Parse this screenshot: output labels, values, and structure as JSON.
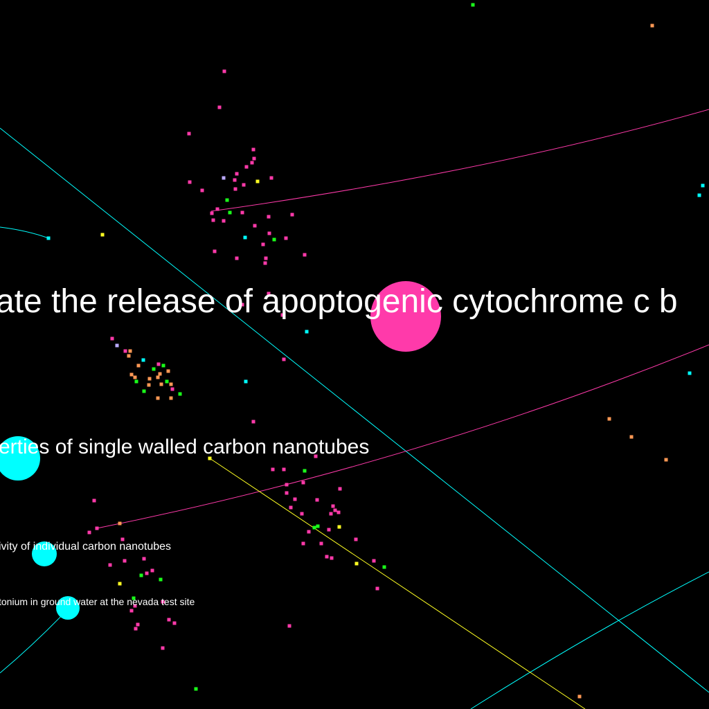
{
  "colors": {
    "background": "#000000",
    "pink": "#ff3aaa",
    "cyan": "#00ffff",
    "green": "#1aff1a",
    "orange": "#ff9955",
    "yellow": "#ffff22",
    "lavender": "#bbaaff",
    "label": "#ffffff"
  },
  "labels": [
    {
      "text": "ate the release of apoptogenic cytochrome c b"
    },
    {
      "text": "erties of single walled carbon nanotubes"
    },
    {
      "text": "ivity of individual carbon nanotubes"
    },
    {
      "text": "tonium in ground water at the nevada test site"
    }
  ]
}
